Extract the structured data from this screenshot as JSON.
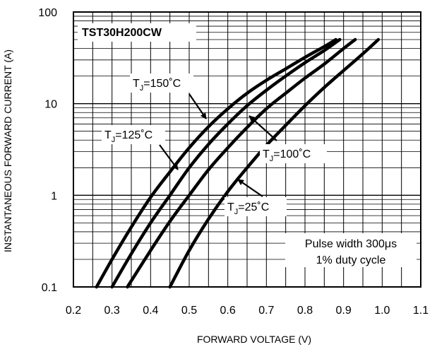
{
  "chart_data": {
    "type": "line",
    "title": "TST30H200CW",
    "xlabel": "FORWARD VOLTAGE (V)",
    "ylabel": "INSTANTANEOUS FORWARD CURRENT (A)",
    "xlim": [
      0.2,
      1.1
    ],
    "ylim": [
      0.1,
      100
    ],
    "yscale": "log",
    "grid": true,
    "x_ticks": [
      "0.2",
      "0.3",
      "0.4",
      "0.5",
      "0.6",
      "0.7",
      "0.8",
      "0.9",
      "1.0",
      "1.1"
    ],
    "y_ticks": [
      "0.1",
      "1",
      "10",
      "100"
    ],
    "annotations": [
      "Pulse width 300μs",
      "1% duty cycle"
    ],
    "series": [
      {
        "name": "TJ=150°C",
        "label_main": "T",
        "label_sub": "J",
        "label_rest": "=150˚C",
        "points": [
          [
            0.26,
            0.1
          ],
          [
            0.3,
            0.2
          ],
          [
            0.35,
            0.45
          ],
          [
            0.4,
            0.95
          ],
          [
            0.45,
            1.8
          ],
          [
            0.5,
            3.3
          ],
          [
            0.55,
            5.6
          ],
          [
            0.6,
            8.8
          ],
          [
            0.65,
            13
          ],
          [
            0.7,
            18
          ],
          [
            0.75,
            24
          ],
          [
            0.8,
            32
          ],
          [
            0.85,
            42
          ],
          [
            0.88,
            50
          ]
        ]
      },
      {
        "name": "TJ=125°C",
        "label_main": "T",
        "label_sub": "J",
        "label_rest": "=125˚C",
        "points": [
          [
            0.3,
            0.1
          ],
          [
            0.35,
            0.23
          ],
          [
            0.4,
            0.5
          ],
          [
            0.45,
            1.0
          ],
          [
            0.5,
            2.0
          ],
          [
            0.55,
            3.6
          ],
          [
            0.6,
            6.0
          ],
          [
            0.65,
            9.5
          ],
          [
            0.7,
            14
          ],
          [
            0.75,
            20
          ],
          [
            0.8,
            28
          ],
          [
            0.85,
            38
          ],
          [
            0.89,
            50
          ]
        ]
      },
      {
        "name": "TJ=100°C",
        "label_main": "T",
        "label_sub": "J",
        "label_rest": "=100˚C",
        "points": [
          [
            0.34,
            0.1
          ],
          [
            0.4,
            0.25
          ],
          [
            0.45,
            0.52
          ],
          [
            0.5,
            1.0
          ],
          [
            0.55,
            1.9
          ],
          [
            0.6,
            3.3
          ],
          [
            0.65,
            5.5
          ],
          [
            0.7,
            8.8
          ],
          [
            0.75,
            13
          ],
          [
            0.8,
            19
          ],
          [
            0.85,
            27
          ],
          [
            0.9,
            40
          ],
          [
            0.93,
            50
          ]
        ]
      },
      {
        "name": "TJ=25°C",
        "label_main": "T",
        "label_sub": "J",
        "label_rest": "=25˚C",
        "points": [
          [
            0.45,
            0.1
          ],
          [
            0.5,
            0.25
          ],
          [
            0.55,
            0.55
          ],
          [
            0.6,
            1.1
          ],
          [
            0.65,
            2.0
          ],
          [
            0.7,
            3.5
          ],
          [
            0.75,
            5.8
          ],
          [
            0.8,
            9.5
          ],
          [
            0.85,
            15
          ],
          [
            0.9,
            23
          ],
          [
            0.95,
            35
          ],
          [
            0.99,
            50
          ]
        ]
      }
    ]
  }
}
